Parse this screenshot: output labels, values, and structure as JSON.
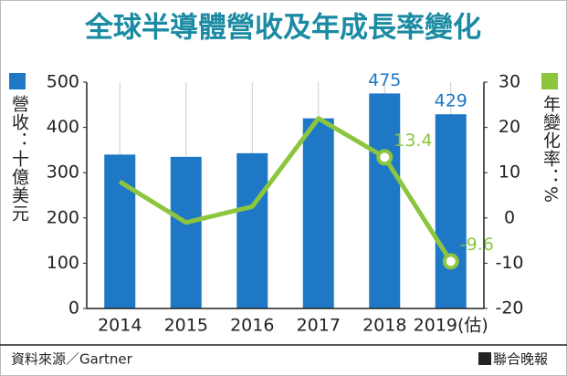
{
  "chart_data": {
    "type": "bar-line",
    "title": "全球半導體營收及年成長率變化",
    "y_label": "營收：十億美元",
    "y2_label": "年變化率：%",
    "source": "資料來源／Gartner",
    "publisher": "聯合晚報",
    "categories": [
      "2014",
      "2015",
      "2016",
      "2017",
      "2018",
      "2019(估)"
    ],
    "series": [
      {
        "name": "營收",
        "type": "bar",
        "color": "#1e78c6",
        "values": [
          340,
          335,
          343,
          420,
          475,
          429
        ],
        "value_labels": [
          null,
          null,
          null,
          null,
          "475",
          "429"
        ]
      },
      {
        "name": "年變化率",
        "type": "line",
        "axis": "y2",
        "color": "#8cc63f",
        "values": [
          8,
          -1,
          2.5,
          22,
          13.4,
          -9.6
        ],
        "value_labels": [
          null,
          null,
          null,
          null,
          "13.4",
          "-9.6"
        ]
      }
    ],
    "ylim": [
      0,
      500
    ],
    "yticks": [
      0,
      100,
      200,
      300,
      400,
      500
    ],
    "y2lim": [
      -20,
      30
    ],
    "y2ticks": [
      -20,
      -10,
      0,
      10,
      20,
      30
    ]
  }
}
